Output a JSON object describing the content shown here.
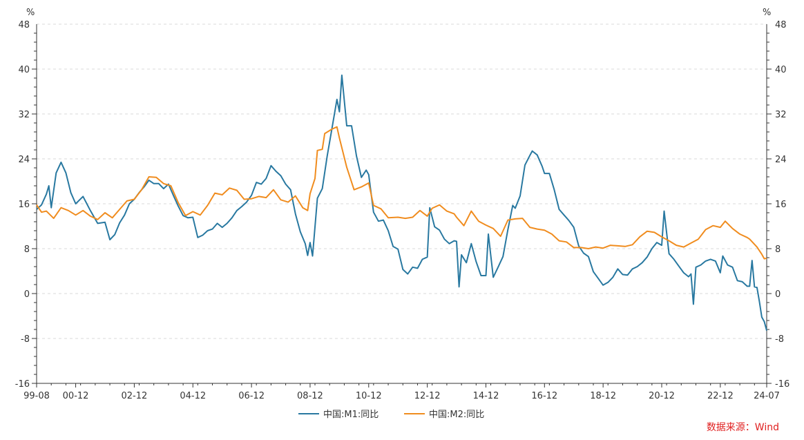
{
  "chart_data": {
    "type": "line",
    "y_unit_left": "%",
    "y_unit_right": "%",
    "ylim": [
      -16,
      48
    ],
    "yticks": [
      -16,
      -8,
      0,
      8,
      16,
      24,
      32,
      40,
      48
    ],
    "xlim": [
      "1999-08",
      "2024-07"
    ],
    "xticks": [
      "99-08",
      "00-12",
      "02-12",
      "04-12",
      "06-12",
      "08-12",
      "10-12",
      "12-12",
      "14-12",
      "16-12",
      "18-12",
      "20-12",
      "22-12",
      "24-07"
    ],
    "grid": "horizontal-dashed",
    "legend_position": "bottom",
    "source": "数据来源：Wind",
    "series": [
      {
        "name": "中国:M1:同比",
        "color": "#2878a0",
        "points": [
          [
            "1999-08",
            15.0
          ],
          [
            "1999-10",
            15.8
          ],
          [
            "1999-12",
            17.7
          ],
          [
            "2000-01",
            19.2
          ],
          [
            "2000-02",
            15.3
          ],
          [
            "2000-04",
            21.5
          ],
          [
            "2000-06",
            23.4
          ],
          [
            "2000-08",
            21.5
          ],
          [
            "2000-10",
            18.0
          ],
          [
            "2000-12",
            16.0
          ],
          [
            "2001-03",
            17.3
          ],
          [
            "2001-06",
            14.8
          ],
          [
            "2001-09",
            12.5
          ],
          [
            "2001-12",
            12.7
          ],
          [
            "2002-02",
            9.6
          ],
          [
            "2002-04",
            10.5
          ],
          [
            "2002-06",
            12.6
          ],
          [
            "2002-08",
            14.0
          ],
          [
            "2002-10",
            16.0
          ],
          [
            "2002-12",
            16.8
          ],
          [
            "2003-02",
            18.0
          ],
          [
            "2003-04",
            19.0
          ],
          [
            "2003-06",
            20.2
          ],
          [
            "2003-08",
            19.6
          ],
          [
            "2003-10",
            19.6
          ],
          [
            "2003-12",
            18.7
          ],
          [
            "2004-02",
            19.5
          ],
          [
            "2004-04",
            17.5
          ],
          [
            "2004-06",
            15.6
          ],
          [
            "2004-08",
            13.9
          ],
          [
            "2004-10",
            13.5
          ],
          [
            "2004-12",
            13.6
          ],
          [
            "2005-02",
            10.0
          ],
          [
            "2005-04",
            10.4
          ],
          [
            "2005-06",
            11.2
          ],
          [
            "2005-08",
            11.5
          ],
          [
            "2005-10",
            12.5
          ],
          [
            "2005-12",
            11.8
          ],
          [
            "2006-02",
            12.5
          ],
          [
            "2006-04",
            13.5
          ],
          [
            "2006-06",
            14.8
          ],
          [
            "2006-08",
            15.5
          ],
          [
            "2006-10",
            16.3
          ],
          [
            "2006-12",
            17.5
          ],
          [
            "2007-02",
            19.8
          ],
          [
            "2007-04",
            19.5
          ],
          [
            "2007-06",
            20.5
          ],
          [
            "2007-08",
            22.8
          ],
          [
            "2007-10",
            21.8
          ],
          [
            "2007-12",
            21.0
          ],
          [
            "2008-02",
            19.5
          ],
          [
            "2008-04",
            18.5
          ],
          [
            "2008-06",
            14.2
          ],
          [
            "2008-08",
            11.0
          ],
          [
            "2008-10",
            8.9
          ],
          [
            "2008-11",
            6.8
          ],
          [
            "2008-12",
            9.1
          ],
          [
            "2009-01",
            6.7
          ],
          [
            "2009-03",
            17.0
          ],
          [
            "2009-05",
            18.7
          ],
          [
            "2009-07",
            24.5
          ],
          [
            "2009-09",
            29.5
          ],
          [
            "2009-11",
            34.6
          ],
          [
            "2009-12",
            32.4
          ],
          [
            "2010-01",
            38.9
          ],
          [
            "2010-03",
            29.9
          ],
          [
            "2010-05",
            29.9
          ],
          [
            "2010-07",
            24.5
          ],
          [
            "2010-09",
            20.7
          ],
          [
            "2010-11",
            22.0
          ],
          [
            "2010-12",
            21.2
          ],
          [
            "2011-02",
            14.5
          ],
          [
            "2011-04",
            12.9
          ],
          [
            "2011-06",
            13.1
          ],
          [
            "2011-08",
            11.2
          ],
          [
            "2011-10",
            8.4
          ],
          [
            "2011-12",
            7.9
          ],
          [
            "2012-02",
            4.3
          ],
          [
            "2012-04",
            3.5
          ],
          [
            "2012-06",
            4.7
          ],
          [
            "2012-08",
            4.5
          ],
          [
            "2012-10",
            6.1
          ],
          [
            "2012-12",
            6.5
          ],
          [
            "2013-01",
            15.3
          ],
          [
            "2013-03",
            11.9
          ],
          [
            "2013-05",
            11.3
          ],
          [
            "2013-07",
            9.7
          ],
          [
            "2013-09",
            8.9
          ],
          [
            "2013-11",
            9.4
          ],
          [
            "2013-12",
            9.3
          ],
          [
            "2014-01",
            1.2
          ],
          [
            "2014-02",
            6.9
          ],
          [
            "2014-04",
            5.5
          ],
          [
            "2014-06",
            8.9
          ],
          [
            "2014-08",
            5.7
          ],
          [
            "2014-10",
            3.2
          ],
          [
            "2014-12",
            3.2
          ],
          [
            "2015-01",
            10.6
          ],
          [
            "2015-03",
            2.9
          ],
          [
            "2015-05",
            4.7
          ],
          [
            "2015-07",
            6.6
          ],
          [
            "2015-09",
            11.4
          ],
          [
            "2015-11",
            15.7
          ],
          [
            "2015-12",
            15.2
          ],
          [
            "2016-02",
            17.4
          ],
          [
            "2016-04",
            22.9
          ],
          [
            "2016-06",
            24.6
          ],
          [
            "2016-07",
            25.4
          ],
          [
            "2016-09",
            24.7
          ],
          [
            "2016-11",
            22.7
          ],
          [
            "2016-12",
            21.4
          ],
          [
            "2017-02",
            21.4
          ],
          [
            "2017-04",
            18.5
          ],
          [
            "2017-06",
            15.0
          ],
          [
            "2017-08",
            14.0
          ],
          [
            "2017-10",
            13.0
          ],
          [
            "2017-12",
            11.8
          ],
          [
            "2018-02",
            8.5
          ],
          [
            "2018-04",
            7.2
          ],
          [
            "2018-06",
            6.6
          ],
          [
            "2018-08",
            3.9
          ],
          [
            "2018-10",
            2.7
          ],
          [
            "2018-12",
            1.5
          ],
          [
            "2019-02",
            2.0
          ],
          [
            "2019-04",
            2.9
          ],
          [
            "2019-06",
            4.4
          ],
          [
            "2019-08",
            3.4
          ],
          [
            "2019-10",
            3.3
          ],
          [
            "2019-12",
            4.4
          ],
          [
            "2020-02",
            4.8
          ],
          [
            "2020-04",
            5.5
          ],
          [
            "2020-06",
            6.5
          ],
          [
            "2020-08",
            8.0
          ],
          [
            "2020-10",
            9.1
          ],
          [
            "2020-12",
            8.6
          ],
          [
            "2021-01",
            14.7
          ],
          [
            "2021-03",
            7.1
          ],
          [
            "2021-05",
            6.1
          ],
          [
            "2021-07",
            4.9
          ],
          [
            "2021-09",
            3.7
          ],
          [
            "2021-11",
            3.0
          ],
          [
            "2021-12",
            3.5
          ],
          [
            "2022-01",
            -1.9
          ],
          [
            "2022-02",
            4.7
          ],
          [
            "2022-04",
            5.1
          ],
          [
            "2022-06",
            5.8
          ],
          [
            "2022-08",
            6.1
          ],
          [
            "2022-10",
            5.8
          ],
          [
            "2022-12",
            3.7
          ],
          [
            "2023-01",
            6.7
          ],
          [
            "2023-03",
            5.1
          ],
          [
            "2023-05",
            4.7
          ],
          [
            "2023-07",
            2.3
          ],
          [
            "2023-09",
            2.1
          ],
          [
            "2023-11",
            1.3
          ],
          [
            "2023-12",
            1.3
          ],
          [
            "2024-01",
            5.9
          ],
          [
            "2024-02",
            1.2
          ],
          [
            "2024-03",
            1.1
          ],
          [
            "2024-04",
            -1.4
          ],
          [
            "2024-05",
            -4.2
          ],
          [
            "2024-06",
            -5.0
          ],
          [
            "2024-07",
            -6.6
          ]
        ]
      },
      {
        "name": "中国:M2:同比",
        "color": "#f08c1e",
        "points": [
          [
            "1999-08",
            15.8
          ],
          [
            "1999-10",
            14.5
          ],
          [
            "1999-12",
            14.7
          ],
          [
            "2000-03",
            13.4
          ],
          [
            "2000-06",
            15.3
          ],
          [
            "2000-09",
            14.8
          ],
          [
            "2000-12",
            14.0
          ],
          [
            "2001-03",
            14.8
          ],
          [
            "2001-06",
            13.8
          ],
          [
            "2001-09",
            13.2
          ],
          [
            "2001-12",
            14.4
          ],
          [
            "2002-03",
            13.5
          ],
          [
            "2002-06",
            15.0
          ],
          [
            "2002-09",
            16.5
          ],
          [
            "2002-12",
            16.8
          ],
          [
            "2003-03",
            18.5
          ],
          [
            "2003-06",
            20.8
          ],
          [
            "2003-09",
            20.7
          ],
          [
            "2003-12",
            19.6
          ],
          [
            "2004-03",
            19.2
          ],
          [
            "2004-06",
            16.2
          ],
          [
            "2004-09",
            13.9
          ],
          [
            "2004-12",
            14.6
          ],
          [
            "2005-03",
            14.0
          ],
          [
            "2005-06",
            15.7
          ],
          [
            "2005-09",
            17.9
          ],
          [
            "2005-12",
            17.6
          ],
          [
            "2006-03",
            18.8
          ],
          [
            "2006-06",
            18.4
          ],
          [
            "2006-09",
            16.8
          ],
          [
            "2006-12",
            16.9
          ],
          [
            "2007-03",
            17.3
          ],
          [
            "2007-06",
            17.1
          ],
          [
            "2007-09",
            18.5
          ],
          [
            "2007-12",
            16.7
          ],
          [
            "2008-03",
            16.3
          ],
          [
            "2008-06",
            17.4
          ],
          [
            "2008-09",
            15.3
          ],
          [
            "2008-11",
            14.8
          ],
          [
            "2008-12",
            17.8
          ],
          [
            "2009-02",
            20.5
          ],
          [
            "2009-03",
            25.5
          ],
          [
            "2009-05",
            25.7
          ],
          [
            "2009-06",
            28.5
          ],
          [
            "2009-09",
            29.3
          ],
          [
            "2009-11",
            29.7
          ],
          [
            "2009-12",
            27.7
          ],
          [
            "2010-03",
            22.5
          ],
          [
            "2010-06",
            18.5
          ],
          [
            "2010-09",
            19.0
          ],
          [
            "2010-12",
            19.7
          ],
          [
            "2011-02",
            15.7
          ],
          [
            "2011-05",
            15.1
          ],
          [
            "2011-08",
            13.5
          ],
          [
            "2011-12",
            13.6
          ],
          [
            "2012-03",
            13.4
          ],
          [
            "2012-06",
            13.6
          ],
          [
            "2012-09",
            14.8
          ],
          [
            "2012-12",
            13.8
          ],
          [
            "2013-02",
            15.2
          ],
          [
            "2013-05",
            15.8
          ],
          [
            "2013-08",
            14.7
          ],
          [
            "2013-11",
            14.2
          ],
          [
            "2013-12",
            13.6
          ],
          [
            "2014-03",
            12.1
          ],
          [
            "2014-06",
            14.7
          ],
          [
            "2014-09",
            12.9
          ],
          [
            "2014-12",
            12.2
          ],
          [
            "2015-03",
            11.6
          ],
          [
            "2015-06",
            10.2
          ],
          [
            "2015-09",
            13.1
          ],
          [
            "2015-12",
            13.3
          ],
          [
            "2016-03",
            13.4
          ],
          [
            "2016-06",
            11.8
          ],
          [
            "2016-09",
            11.5
          ],
          [
            "2016-12",
            11.3
          ],
          [
            "2017-03",
            10.6
          ],
          [
            "2017-06",
            9.4
          ],
          [
            "2017-09",
            9.2
          ],
          [
            "2017-12",
            8.2
          ],
          [
            "2018-03",
            8.2
          ],
          [
            "2018-06",
            8.0
          ],
          [
            "2018-09",
            8.3
          ],
          [
            "2018-12",
            8.1
          ],
          [
            "2019-03",
            8.6
          ],
          [
            "2019-06",
            8.5
          ],
          [
            "2019-09",
            8.4
          ],
          [
            "2019-12",
            8.7
          ],
          [
            "2020-03",
            10.1
          ],
          [
            "2020-06",
            11.1
          ],
          [
            "2020-09",
            10.9
          ],
          [
            "2020-12",
            10.1
          ],
          [
            "2021-03",
            9.4
          ],
          [
            "2021-06",
            8.6
          ],
          [
            "2021-09",
            8.3
          ],
          [
            "2021-12",
            9.0
          ],
          [
            "2022-03",
            9.7
          ],
          [
            "2022-06",
            11.4
          ],
          [
            "2022-09",
            12.1
          ],
          [
            "2022-12",
            11.8
          ],
          [
            "2023-02",
            12.9
          ],
          [
            "2023-05",
            11.6
          ],
          [
            "2023-08",
            10.6
          ],
          [
            "2023-11",
            10.0
          ],
          [
            "2023-12",
            9.7
          ],
          [
            "2024-03",
            8.3
          ],
          [
            "2024-05",
            7.0
          ],
          [
            "2024-06",
            6.2
          ],
          [
            "2024-07",
            6.3
          ]
        ]
      }
    ]
  }
}
